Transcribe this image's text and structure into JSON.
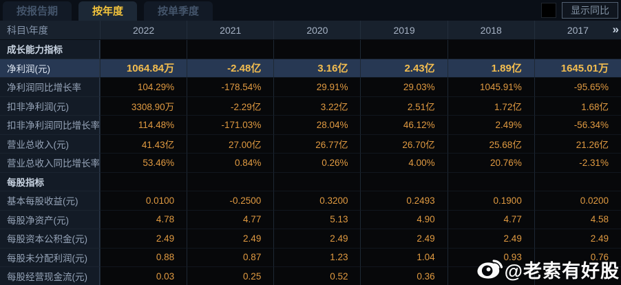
{
  "tabs": [
    {
      "label": "按报告期",
      "active": false
    },
    {
      "label": "按年度",
      "active": true
    },
    {
      "label": "按单季度",
      "active": false
    }
  ],
  "controls": {
    "checkbox_label": "显示同比",
    "checkbox_checked": false
  },
  "table": {
    "corner_header": "科目\\年度",
    "year_columns": [
      "2022",
      "2021",
      "2020",
      "2019",
      "2018",
      "2017"
    ],
    "more_icon": "»",
    "rows": [
      {
        "label": "成长能力指标",
        "type": "section",
        "values": [
          "",
          "",
          "",
          "",
          "",
          ""
        ]
      },
      {
        "label": "净利润(元)",
        "type": "highlight",
        "values": [
          "1064.84万",
          "-2.48亿",
          "3.16亿",
          "2.43亿",
          "1.89亿",
          "1645.01万"
        ]
      },
      {
        "label": "净利润同比增长率",
        "type": "data",
        "values": [
          "104.29%",
          "-178.54%",
          "29.91%",
          "29.03%",
          "1045.91%",
          "-95.65%"
        ]
      },
      {
        "label": "扣非净利润(元)",
        "type": "data",
        "values": [
          "3308.90万",
          "-2.29亿",
          "3.22亿",
          "2.51亿",
          "1.72亿",
          "1.68亿"
        ]
      },
      {
        "label": "扣非净利润同比增长率",
        "type": "data",
        "values": [
          "114.48%",
          "-171.03%",
          "28.04%",
          "46.12%",
          "2.49%",
          "-56.34%"
        ]
      },
      {
        "label": "营业总收入(元)",
        "type": "data",
        "values": [
          "41.43亿",
          "27.00亿",
          "26.77亿",
          "26.70亿",
          "25.68亿",
          "21.26亿"
        ]
      },
      {
        "label": "营业总收入同比增长率",
        "type": "data",
        "values": [
          "53.46%",
          "0.84%",
          "0.26%",
          "4.00%",
          "20.76%",
          "-2.31%"
        ]
      },
      {
        "label": "每股指标",
        "type": "section",
        "values": [
          "",
          "",
          "",
          "",
          "",
          ""
        ]
      },
      {
        "label": "基本每股收益(元)",
        "type": "data",
        "values": [
          "0.0100",
          "-0.2500",
          "0.3200",
          "0.2493",
          "0.1900",
          "0.0200"
        ]
      },
      {
        "label": "每股净资产(元)",
        "type": "data",
        "values": [
          "4.78",
          "4.77",
          "5.13",
          "4.90",
          "4.77",
          "4.58"
        ]
      },
      {
        "label": "每股资本公积金(元)",
        "type": "data",
        "values": [
          "2.49",
          "2.49",
          "2.49",
          "2.49",
          "2.49",
          "2.49"
        ]
      },
      {
        "label": "每股未分配利润(元)",
        "type": "data",
        "values": [
          "0.88",
          "0.87",
          "1.23",
          "1.04",
          "0.93",
          "0.76"
        ]
      },
      {
        "label": "每股经营现金流(元)",
        "type": "data",
        "values": [
          "0.03",
          "0.25",
          "0.52",
          "0.36",
          "",
          ""
        ]
      }
    ]
  },
  "watermark": {
    "text": "@老索有好股",
    "icon": "weibo-icon"
  },
  "colors": {
    "accent": "#f2c33c",
    "value_color": "#e09a41",
    "highlight_bg": "#273853",
    "highlight_value": "#f3bd4f"
  }
}
